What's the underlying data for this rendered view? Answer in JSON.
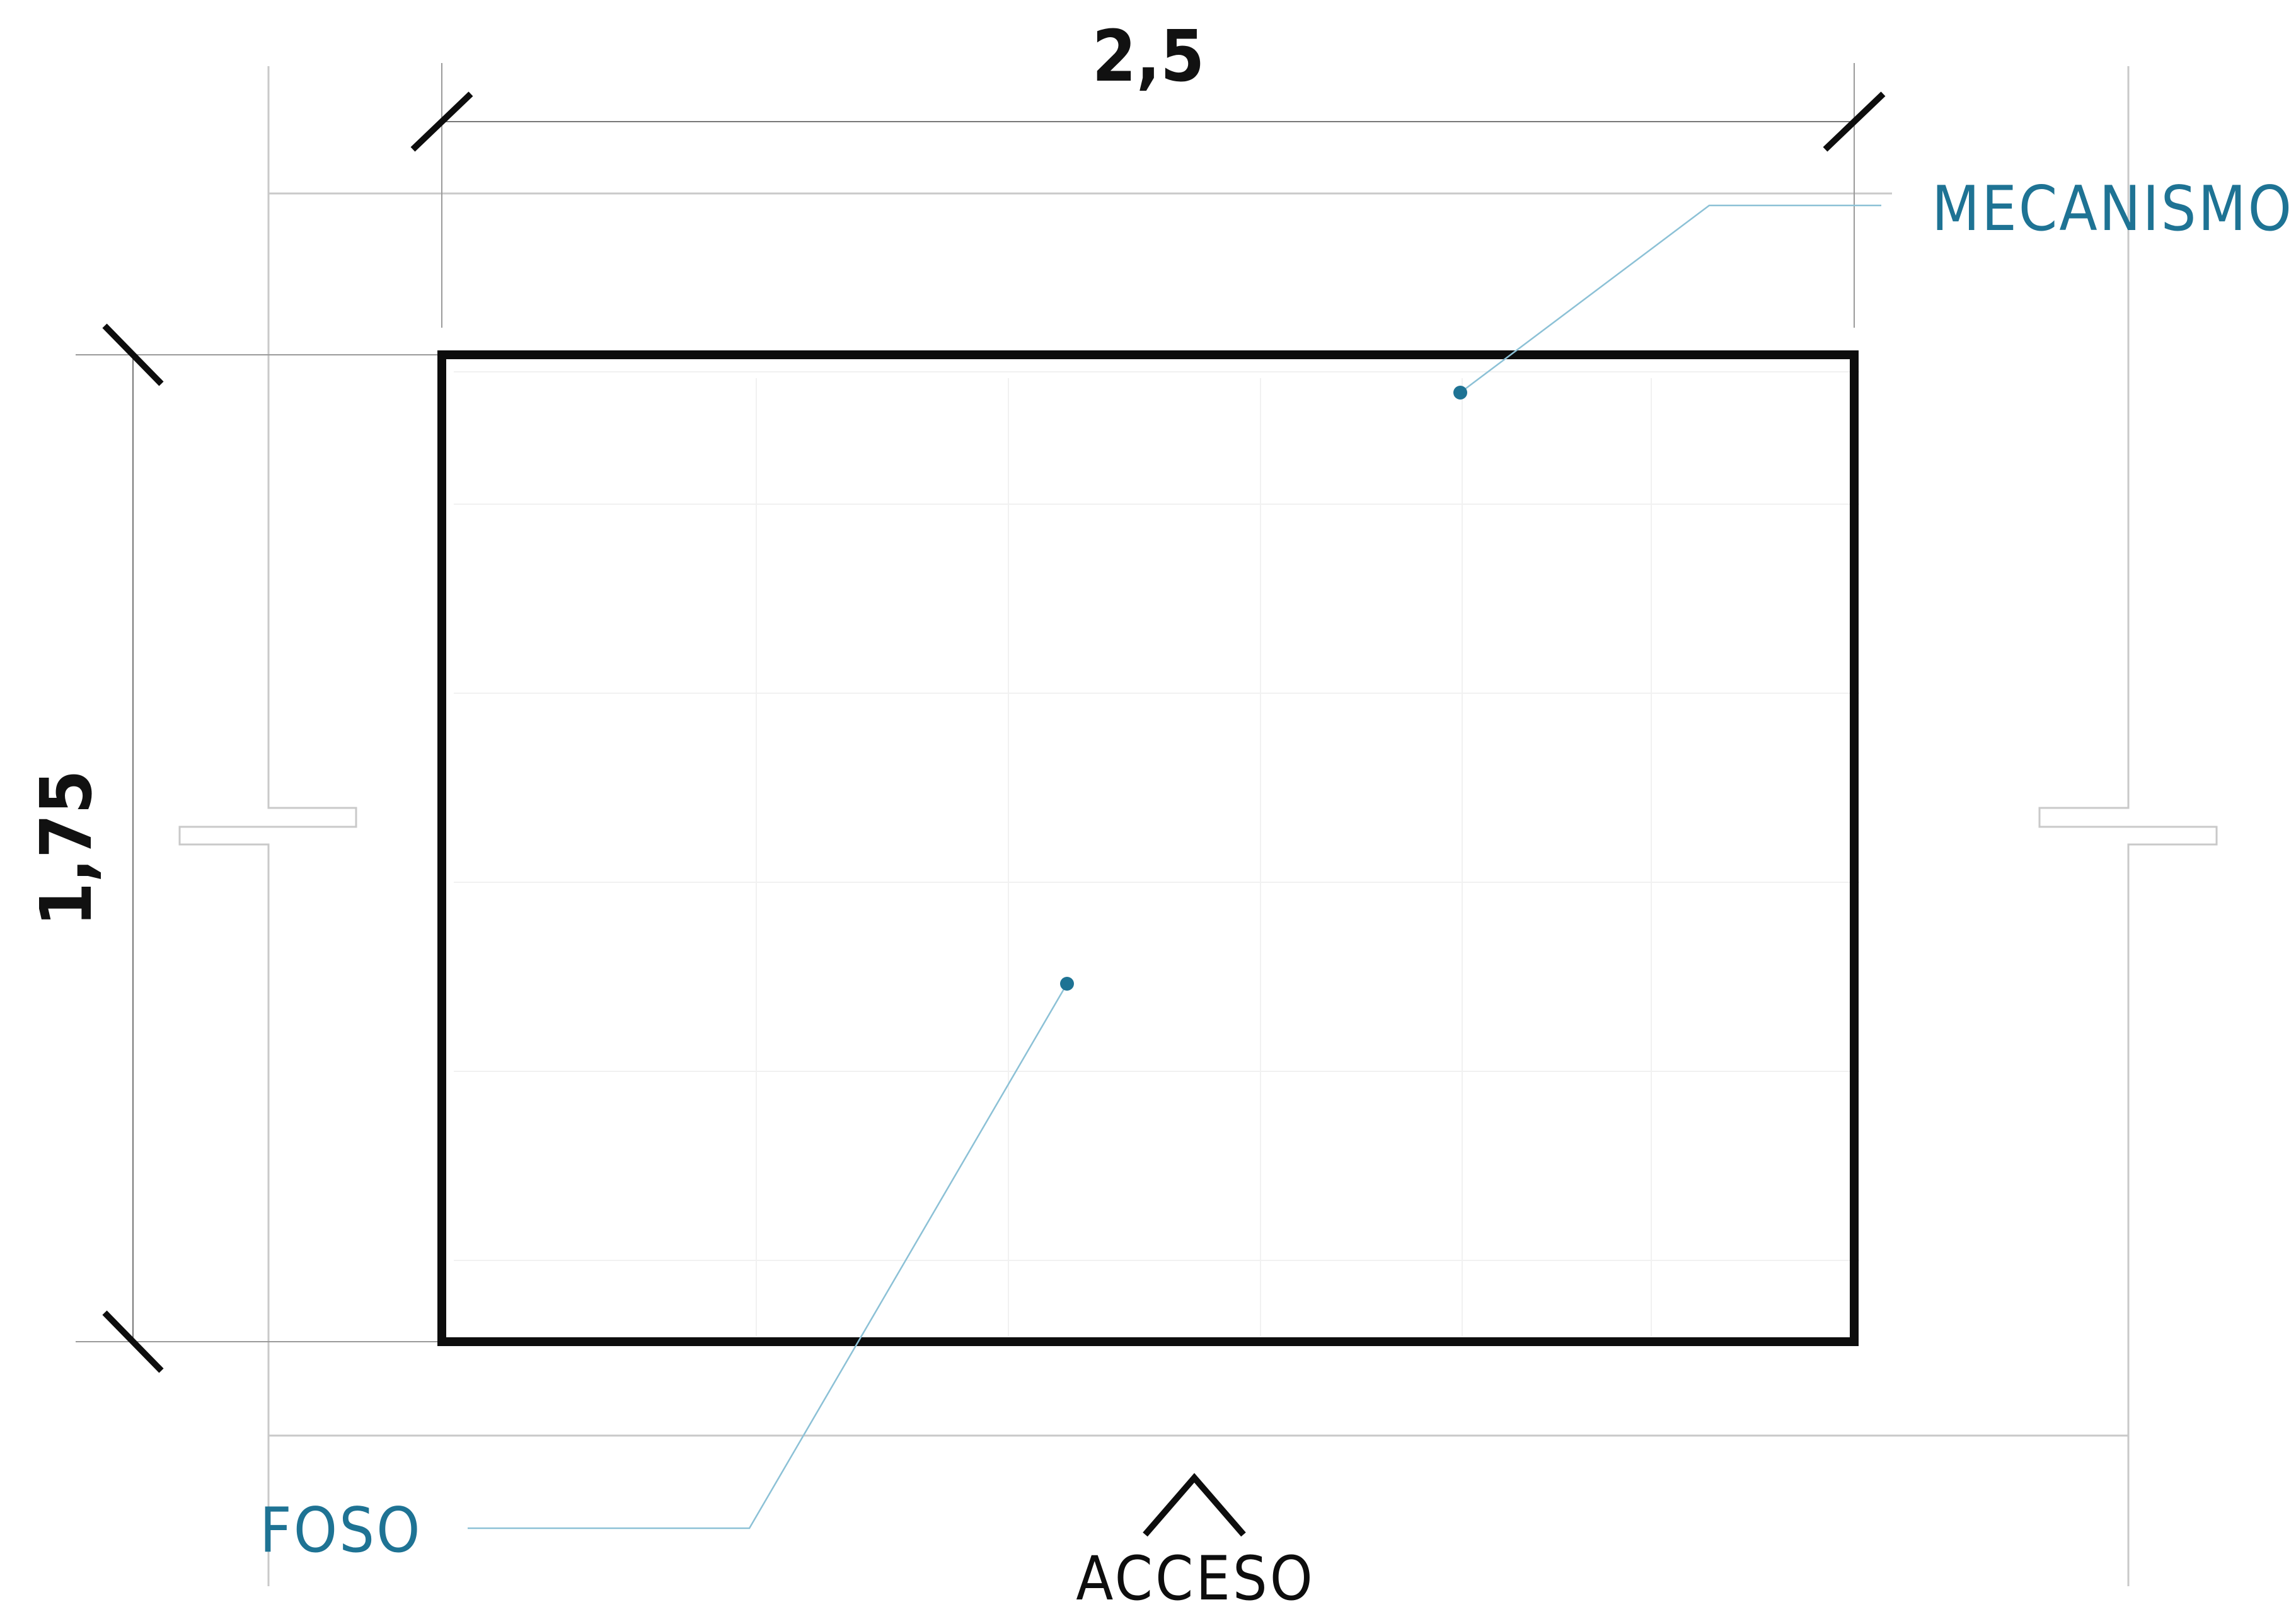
{
  "dimensions": {
    "width_label": "2,5",
    "height_label": "1,75"
  },
  "callouts": {
    "mechanism": "MECANISMO",
    "pit": "FOSO"
  },
  "access": {
    "label": "ACCESO",
    "arrow_icon": "chevron-up-icon"
  },
  "colors": {
    "accent": "#1e7394",
    "accent_light": "#8cc1d6",
    "outline": "#0d0d0d",
    "wall": "#c9c9c9"
  }
}
